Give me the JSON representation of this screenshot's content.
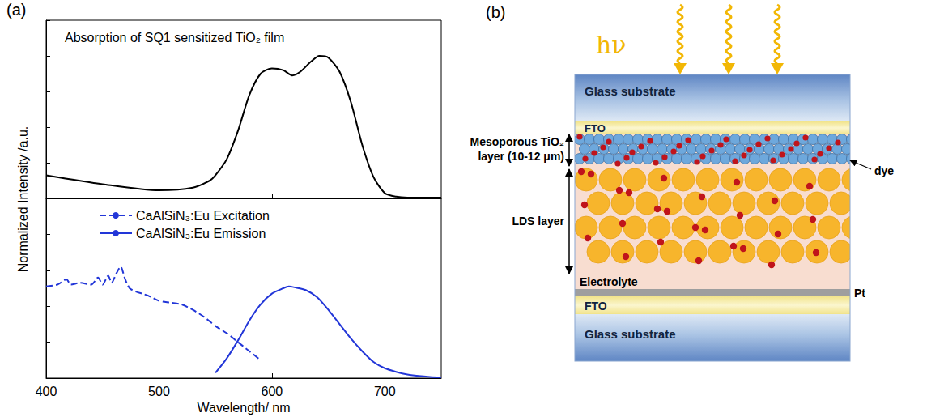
{
  "figure": {
    "panel_labels": [
      "(a)",
      "(b)"
    ],
    "ylabel": "Normalized Intensity /a.u."
  },
  "chart_data": [
    {
      "type": "line",
      "title": "Absorption of SQ1 sensitized TiO₂ film",
      "xlim": [
        400,
        750
      ],
      "xticks": [
        400,
        500,
        600,
        700
      ],
      "ylim": [
        0,
        1
      ],
      "yticks": [
        0,
        0.2,
        0.4,
        0.6,
        0.8,
        1
      ],
      "tick_labels": false,
      "grid": false,
      "series": [
        {
          "color": "#000000",
          "line_style": "solid",
          "x": [
            400,
            450,
            500,
            530,
            545,
            550,
            560,
            570,
            580,
            590,
            600,
            610,
            618,
            625,
            635,
            642,
            650,
            660,
            670,
            680,
            690,
            700,
            710,
            720,
            750
          ],
          "values": [
            0.13,
            0.08,
            0.045,
            0.06,
            0.1,
            0.13,
            0.22,
            0.38,
            0.58,
            0.7,
            0.73,
            0.72,
            0.69,
            0.71,
            0.77,
            0.8,
            0.79,
            0.71,
            0.54,
            0.3,
            0.12,
            0.03,
            0.01,
            0.005,
            0.005
          ]
        }
      ]
    },
    {
      "type": "line",
      "xlabel": "Wavelength/ nm",
      "xlim": [
        400,
        750
      ],
      "xticks": [
        400,
        500,
        600,
        700
      ],
      "ylim": [
        0,
        1
      ],
      "yticks": [
        0,
        0.2,
        0.4,
        0.6,
        0.8,
        1
      ],
      "tick_labels": "x",
      "grid": false,
      "legend": "upper left",
      "series": [
        {
          "name": "CaAlSiN₃:Eu Excitation",
          "color": "#2236d8",
          "line_style": "dashed",
          "x": [
            400,
            410,
            418,
            422,
            430,
            440,
            446,
            450,
            455,
            458,
            462,
            466,
            470,
            474,
            480,
            485,
            490,
            500,
            510,
            520,
            530,
            540,
            550,
            560,
            570,
            580,
            590
          ],
          "values": [
            0.51,
            0.52,
            0.55,
            0.52,
            0.53,
            0.52,
            0.56,
            0.52,
            0.57,
            0.53,
            0.58,
            0.62,
            0.55,
            0.5,
            0.48,
            0.47,
            0.46,
            0.43,
            0.42,
            0.41,
            0.38,
            0.34,
            0.29,
            0.25,
            0.2,
            0.15,
            0.1
          ]
        },
        {
          "name": "CaAlSiN₃:Eu Emission",
          "color": "#2236d8",
          "line_style": "solid",
          "x": [
            550,
            560,
            570,
            580,
            590,
            600,
            610,
            615,
            620,
            630,
            640,
            650,
            660,
            670,
            680,
            690,
            700,
            710,
            720,
            730,
            740,
            750
          ],
          "values": [
            0.03,
            0.11,
            0.21,
            0.32,
            0.41,
            0.47,
            0.5,
            0.51,
            0.505,
            0.49,
            0.45,
            0.38,
            0.3,
            0.22,
            0.15,
            0.09,
            0.055,
            0.035,
            0.02,
            0.012,
            0.007,
            0.004
          ]
        }
      ]
    }
  ],
  "diagram": {
    "light": "hν",
    "top_glass": "Glass substrate",
    "top_fto": "FTO",
    "tio2_layer": "Mesoporous TiO₂ layer (10-12 μm)",
    "lds_layer": "LDS layer",
    "dye": "dye",
    "electrolyte": "Electrolyte",
    "pt": "Pt",
    "bottom_fto": "FTO",
    "bottom_glass": "Glass substrate"
  }
}
